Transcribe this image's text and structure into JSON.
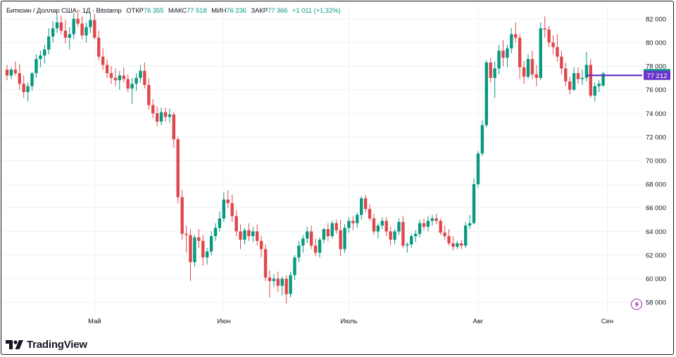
{
  "header": {
    "symbol": "Биткоин / Доллар США · 1Д · Bitstamp",
    "open_label": "ОТКР",
    "open_value": "76 355",
    "high_label": "МАКС",
    "high_value": "77 518",
    "low_label": "МИН",
    "low_value": "76 236",
    "close_label": "ЗАКР",
    "close_value": "77 366",
    "change": "+1 011 (+1,32%)"
  },
  "branding": {
    "name": "TradingView"
  },
  "colors": {
    "up": "#089981",
    "down": "#e0474c",
    "line": "#6a35c9",
    "last_price": "#089981",
    "marker": "#6a35c9",
    "grid": "#eef0f3"
  },
  "chart_data": {
    "type": "candlestick",
    "ylim": [
      57000,
      83000
    ],
    "y_ticks": [
      "58 000",
      "60 000",
      "62 000",
      "64 000",
      "66 000",
      "68 000",
      "70 000",
      "72 000",
      "74 000",
      "76 000",
      "78 000",
      "80 000",
      "82 000"
    ],
    "x_ticks": [
      {
        "label": "Май",
        "date": "2024-05-01"
      },
      {
        "label": "Июн",
        "date": "2024-06-01"
      },
      {
        "label": "Июль",
        "date": "2024-07-01"
      },
      {
        "label": "Авг",
        "date": "2024-08-01"
      },
      {
        "label": "Сен",
        "date": "2024-09-01"
      }
    ],
    "start_date": "2024-04-10",
    "last_price_label": "77 366",
    "horizontal_line": {
      "value": 77212,
      "label": "77 212",
      "from_date": "2024-08-27"
    },
    "ohlc": [
      [
        77700,
        78100,
        76800,
        77200
      ],
      [
        77200,
        77900,
        76900,
        77700
      ],
      [
        77700,
        78400,
        77200,
        77400
      ],
      [
        77400,
        78200,
        76000,
        76500
      ],
      [
        76500,
        77200,
        75300,
        75800
      ],
      [
        75800,
        76600,
        75000,
        76300
      ],
      [
        76300,
        77500,
        75900,
        77400
      ],
      [
        77400,
        79000,
        77000,
        78600
      ],
      [
        78600,
        79300,
        77900,
        78900
      ],
      [
        78900,
        79800,
        78200,
        79400
      ],
      [
        79400,
        81200,
        79000,
        80500
      ],
      [
        80500,
        81800,
        80000,
        81200
      ],
      [
        81200,
        82400,
        80800,
        81700
      ],
      [
        81700,
        82300,
        80700,
        81000
      ],
      [
        81000,
        81900,
        79900,
        80400
      ],
      [
        80400,
        81300,
        79400,
        80700
      ],
      [
        80700,
        82500,
        80300,
        82000
      ],
      [
        82000,
        82800,
        81300,
        81600
      ],
      [
        81600,
        82200,
        80300,
        80600
      ],
      [
        80600,
        81700,
        80000,
        81300
      ],
      [
        81300,
        82500,
        80800,
        81900
      ],
      [
        81900,
        82400,
        80300,
        80400
      ],
      [
        80400,
        81000,
        78500,
        78800
      ],
      [
        78800,
        79500,
        77700,
        78100
      ],
      [
        78100,
        78600,
        77000,
        77400
      ],
      [
        77400,
        78000,
        76500,
        77000
      ],
      [
        77000,
        77800,
        76300,
        76800
      ],
      [
        76800,
        77600,
        76000,
        77200
      ],
      [
        77200,
        77900,
        76600,
        76900
      ],
      [
        76900,
        77300,
        75800,
        76100
      ],
      [
        76100,
        77000,
        74800,
        76500
      ],
      [
        76500,
        77400,
        75900,
        77000
      ],
      [
        77000,
        78100,
        76600,
        77600
      ],
      [
        77600,
        78300,
        76100,
        76400
      ],
      [
        76400,
        77000,
        74300,
        74700
      ],
      [
        74700,
        75200,
        73600,
        74000
      ],
      [
        74000,
        74600,
        72900,
        73300
      ],
      [
        73300,
        74500,
        73000,
        74100
      ],
      [
        74100,
        74500,
        73300,
        73700
      ],
      [
        73700,
        74400,
        73200,
        73900
      ],
      [
        73900,
        74100,
        71100,
        71800
      ],
      [
        71800,
        72000,
        66400,
        66900
      ],
      [
        66900,
        67500,
        63300,
        63800
      ],
      [
        63800,
        64500,
        62200,
        63700
      ],
      [
        63700,
        64200,
        59800,
        61400
      ],
      [
        61400,
        63700,
        61000,
        63500
      ],
      [
        63500,
        64200,
        62600,
        63200
      ],
      [
        63200,
        63700,
        61100,
        61800
      ],
      [
        61800,
        62600,
        61200,
        62300
      ],
      [
        62300,
        64000,
        62000,
        63600
      ],
      [
        63600,
        64700,
        63200,
        64300
      ],
      [
        64300,
        65700,
        64000,
        65100
      ],
      [
        65100,
        67300,
        64800,
        66700
      ],
      [
        66700,
        67500,
        66000,
        66400
      ],
      [
        66400,
        67100,
        64800,
        65300
      ],
      [
        65300,
        65800,
        63600,
        64000
      ],
      [
        64000,
        64600,
        62500,
        63300
      ],
      [
        63300,
        64300,
        62900,
        64100
      ],
      [
        64100,
        64700,
        63200,
        63600
      ],
      [
        63600,
        64400,
        63100,
        64000
      ],
      [
        64000,
        64600,
        62800,
        63200
      ],
      [
        63200,
        63600,
        61800,
        62500
      ],
      [
        62500,
        62900,
        59800,
        60100
      ],
      [
        60100,
        60700,
        58400,
        59800
      ],
      [
        59800,
        60400,
        59300,
        60000
      ],
      [
        60000,
        60600,
        58900,
        59400
      ],
      [
        59400,
        60200,
        58600,
        60000
      ],
      [
        60000,
        60300,
        57900,
        58700
      ],
      [
        58700,
        60600,
        58400,
        60300
      ],
      [
        60300,
        62000,
        59900,
        61800
      ],
      [
        61800,
        63200,
        61400,
        62800
      ],
      [
        62800,
        63700,
        62200,
        63400
      ],
      [
        63400,
        64400,
        63000,
        64000
      ],
      [
        64000,
        64500,
        62500,
        62800
      ],
      [
        62800,
        63400,
        61900,
        62200
      ],
      [
        62200,
        63500,
        61800,
        63300
      ],
      [
        63300,
        64300,
        63000,
        64200
      ],
      [
        64200,
        64700,
        63200,
        63600
      ],
      [
        63600,
        64900,
        63400,
        64700
      ],
      [
        64700,
        65000,
        63800,
        64100
      ],
      [
        64100,
        65000,
        61900,
        62500
      ],
      [
        62500,
        64600,
        62200,
        64300
      ],
      [
        64300,
        65200,
        63900,
        64900
      ],
      [
        64900,
        65300,
        64100,
        64700
      ],
      [
        64700,
        65600,
        64300,
        65400
      ],
      [
        65400,
        67000,
        65000,
        66800
      ],
      [
        66800,
        67100,
        65600,
        65900
      ],
      [
        65900,
        66300,
        64900,
        65100
      ],
      [
        65100,
        65500,
        63700,
        64000
      ],
      [
        64000,
        64700,
        63400,
        64500
      ],
      [
        64500,
        65200,
        64200,
        64900
      ],
      [
        64900,
        65200,
        63600,
        64000
      ],
      [
        64000,
        64400,
        62800,
        63300
      ],
      [
        63300,
        64200,
        62900,
        64000
      ],
      [
        64000,
        65100,
        63700,
        64800
      ],
      [
        64800,
        65300,
        62600,
        62800
      ],
      [
        62800,
        63100,
        62200,
        62900
      ],
      [
        62900,
        63800,
        62600,
        63600
      ],
      [
        63600,
        64100,
        63100,
        63800
      ],
      [
        63800,
        65000,
        63500,
        64700
      ],
      [
        64700,
        65100,
        64100,
        64400
      ],
      [
        64400,
        65300,
        64000,
        64900
      ],
      [
        64900,
        65400,
        64500,
        65100
      ],
      [
        65100,
        65500,
        64600,
        64900
      ],
      [
        64900,
        65100,
        63700,
        63900
      ],
      [
        63900,
        64500,
        63300,
        63600
      ],
      [
        63600,
        64200,
        62800,
        63000
      ],
      [
        63000,
        63600,
        62400,
        62700
      ],
      [
        62700,
        63200,
        62500,
        63000
      ],
      [
        63000,
        63300,
        62500,
        62800
      ],
      [
        62800,
        64800,
        62600,
        64500
      ],
      [
        64500,
        65400,
        64200,
        64700
      ],
      [
        64700,
        68500,
        64600,
        68000
      ],
      [
        68000,
        70800,
        67700,
        70600
      ],
      [
        70600,
        73400,
        70400,
        73000
      ],
      [
        73000,
        78500,
        72800,
        78300
      ],
      [
        78300,
        78700,
        76600,
        77000
      ],
      [
        77000,
        78400,
        75300,
        77800
      ],
      [
        77800,
        79800,
        77300,
        79300
      ],
      [
        79300,
        80200,
        78000,
        78700
      ],
      [
        78700,
        79800,
        77900,
        79500
      ],
      [
        79500,
        81200,
        79100,
        80700
      ],
      [
        80700,
        81700,
        80000,
        80400
      ],
      [
        80400,
        80700,
        76900,
        77900
      ],
      [
        77900,
        78400,
        76500,
        77100
      ],
      [
        77100,
        79000,
        76900,
        78600
      ],
      [
        78600,
        79300,
        76900,
        77300
      ],
      [
        77300,
        78100,
        76300,
        77000
      ],
      [
        77000,
        81700,
        76800,
        81200
      ],
      [
        81200,
        82200,
        80400,
        81100
      ],
      [
        81100,
        81400,
        79600,
        80000
      ],
      [
        80000,
        80600,
        79000,
        79600
      ],
      [
        79600,
        80700,
        78400,
        78800
      ],
      [
        78800,
        79300,
        77300,
        77800
      ],
      [
        77800,
        78300,
        76300,
        76700
      ],
      [
        76700,
        77100,
        75600,
        76000
      ],
      [
        76000,
        77900,
        75900,
        77400
      ],
      [
        77400,
        77900,
        76500,
        76900
      ],
      [
        76900,
        77700,
        76400,
        77000
      ],
      [
        77000,
        79200,
        76700,
        78100
      ],
      [
        78100,
        78600,
        75300,
        75500
      ],
      [
        75500,
        76600,
        75000,
        76300
      ],
      [
        76300,
        76800,
        75800,
        76500
      ],
      [
        76355,
        77518,
        76236,
        77366
      ]
    ]
  }
}
